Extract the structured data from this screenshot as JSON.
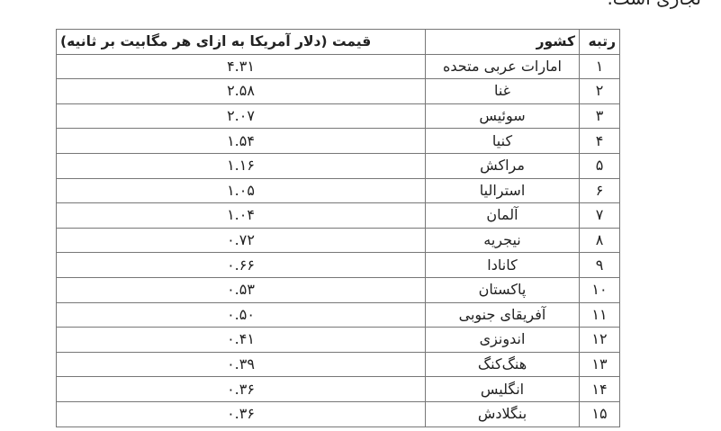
{
  "intro_fragment": "تجاری است.",
  "table": {
    "headers": {
      "rank": "رتبه",
      "country": "کشور",
      "price": "قیمت (دلار آمریکا به ازای هر مگابیت بر ثانیه)"
    },
    "rows": [
      {
        "rank": "۱",
        "country": "امارات عربی متحده",
        "price": "۴.۳۱"
      },
      {
        "rank": "۲",
        "country": "غنا",
        "price": "۲.۵۸"
      },
      {
        "rank": "۳",
        "country": "سوئیس",
        "price": "۲.۰۷"
      },
      {
        "rank": "۴",
        "country": "کنیا",
        "price": "۱.۵۴"
      },
      {
        "rank": "۵",
        "country": "مراکش",
        "price": "۱.۱۶"
      },
      {
        "rank": "۶",
        "country": "استرالیا",
        "price": "۱.۰۵"
      },
      {
        "rank": "۷",
        "country": "آلمان",
        "price": "۱.۰۴"
      },
      {
        "rank": "۸",
        "country": "نیجریه",
        "price": "۰.۷۲"
      },
      {
        "rank": "۹",
        "country": "کانادا",
        "price": "۰.۶۶"
      },
      {
        "rank": "۱۰",
        "country": "پاکستان",
        "price": "۰.۵۳"
      },
      {
        "rank": "۱۱",
        "country": "آفریقای جنوبی",
        "price": "۰.۵۰"
      },
      {
        "rank": "۱۲",
        "country": "اندونزی",
        "price": "۰.۴۱"
      },
      {
        "rank": "۱۳",
        "country": "هنگ‌کنگ",
        "price": "۰.۳۹"
      },
      {
        "rank": "۱۴",
        "country": "انگلیس",
        "price": "۰.۳۶"
      },
      {
        "rank": "۱۵",
        "country": "بنگلادش",
        "price": "۰.۳۶"
      }
    ]
  }
}
